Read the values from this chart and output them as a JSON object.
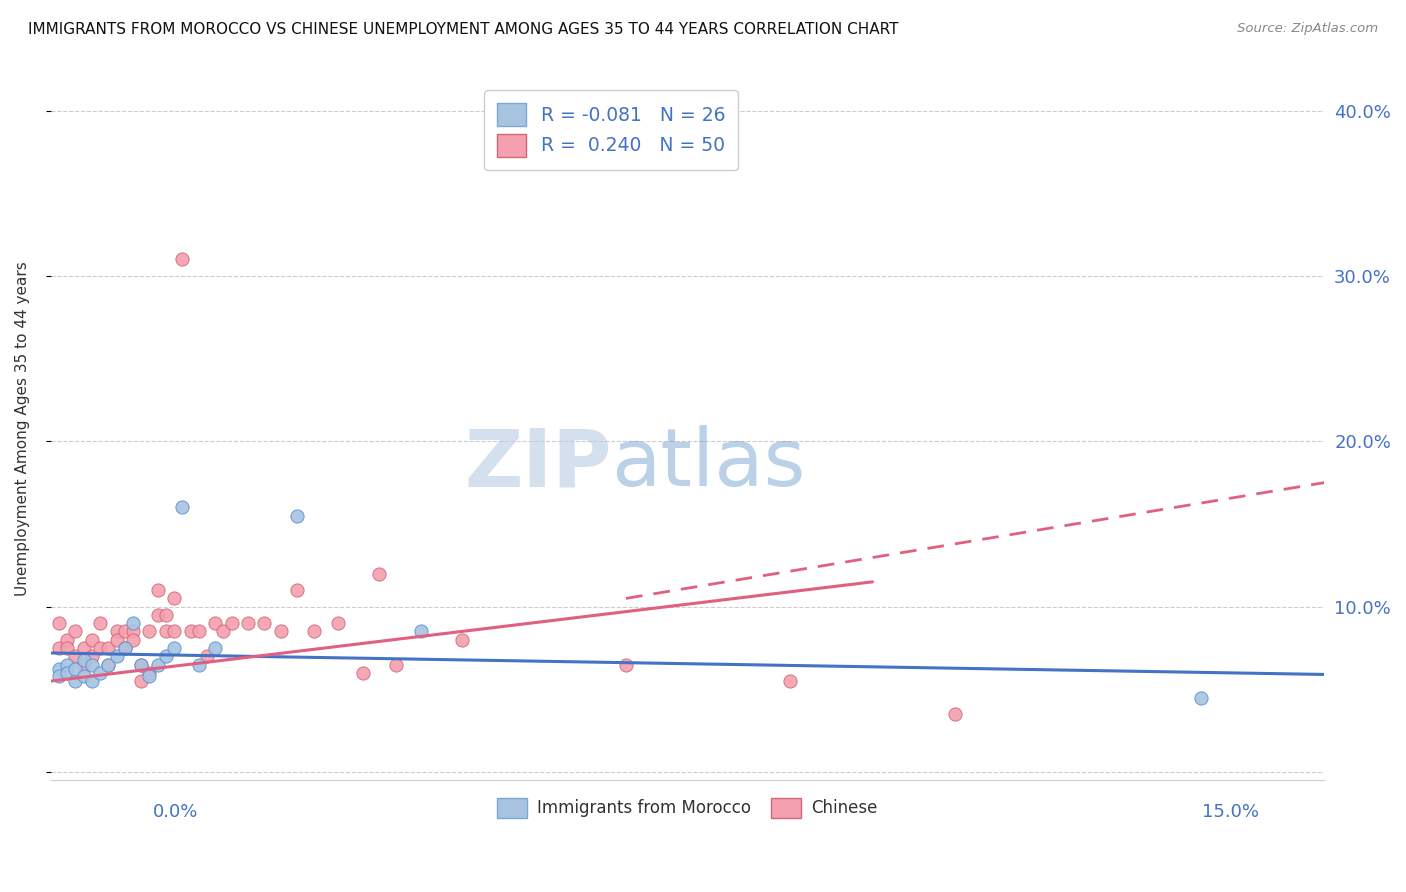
{
  "title": "IMMIGRANTS FROM MOROCCO VS CHINESE UNEMPLOYMENT AMONG AGES 35 TO 44 YEARS CORRELATION CHART",
  "source": "Source: ZipAtlas.com",
  "ylabel": "Unemployment Among Ages 35 to 44 years",
  "xlim": [
    0.0,
    0.155
  ],
  "ylim": [
    -0.005,
    0.42
  ],
  "legend_r_morocco": "-0.081",
  "legend_n_morocco": "26",
  "legend_r_chinese": "0.240",
  "legend_n_chinese": "50",
  "morocco_color": "#a8c4e0",
  "chinese_color": "#f4a0b0",
  "line_morocco_color": "#4472c4",
  "line_chinese_color": "#e06080",
  "watermark_zip": "ZIP",
  "watermark_atlas": "atlas",
  "morocco_scatter_x": [
    0.001,
    0.001,
    0.002,
    0.002,
    0.003,
    0.003,
    0.004,
    0.004,
    0.005,
    0.005,
    0.006,
    0.007,
    0.008,
    0.009,
    0.01,
    0.011,
    0.012,
    0.013,
    0.014,
    0.015,
    0.016,
    0.018,
    0.02,
    0.03,
    0.045,
    0.14
  ],
  "morocco_scatter_y": [
    0.062,
    0.058,
    0.065,
    0.06,
    0.055,
    0.062,
    0.068,
    0.058,
    0.065,
    0.055,
    0.06,
    0.065,
    0.07,
    0.075,
    0.09,
    0.065,
    0.058,
    0.065,
    0.07,
    0.075,
    0.16,
    0.065,
    0.075,
    0.155,
    0.085,
    0.045
  ],
  "chinese_scatter_x": [
    0.001,
    0.001,
    0.002,
    0.002,
    0.003,
    0.003,
    0.004,
    0.004,
    0.005,
    0.005,
    0.006,
    0.006,
    0.007,
    0.007,
    0.008,
    0.008,
    0.009,
    0.009,
    0.01,
    0.01,
    0.011,
    0.011,
    0.012,
    0.012,
    0.013,
    0.013,
    0.014,
    0.014,
    0.015,
    0.015,
    0.016,
    0.017,
    0.018,
    0.019,
    0.02,
    0.021,
    0.022,
    0.024,
    0.026,
    0.028,
    0.03,
    0.032,
    0.035,
    0.038,
    0.04,
    0.042,
    0.05,
    0.07,
    0.09,
    0.11
  ],
  "chinese_scatter_y": [
    0.09,
    0.075,
    0.08,
    0.075,
    0.085,
    0.07,
    0.065,
    0.075,
    0.08,
    0.07,
    0.075,
    0.09,
    0.065,
    0.075,
    0.085,
    0.08,
    0.075,
    0.085,
    0.085,
    0.08,
    0.055,
    0.065,
    0.06,
    0.085,
    0.095,
    0.11,
    0.085,
    0.095,
    0.085,
    0.105,
    0.31,
    0.085,
    0.085,
    0.07,
    0.09,
    0.085,
    0.09,
    0.09,
    0.09,
    0.085,
    0.11,
    0.085,
    0.09,
    0.06,
    0.12,
    0.065,
    0.08,
    0.065,
    0.055,
    0.035
  ],
  "morocco_line_x": [
    0.0,
    0.155
  ],
  "morocco_line_y": [
    0.072,
    0.059
  ],
  "chinese_solid_line_x": [
    0.0,
    0.1
  ],
  "chinese_solid_line_y": [
    0.055,
    0.115
  ],
  "chinese_dashed_line_x": [
    0.07,
    0.155
  ],
  "chinese_dashed_line_y": [
    0.105,
    0.175
  ],
  "title_fontsize": 11,
  "axis_color": "#4472c4",
  "tick_label_color": "#4472c4",
  "grid_color": "#cccccc",
  "background_color": "#ffffff"
}
